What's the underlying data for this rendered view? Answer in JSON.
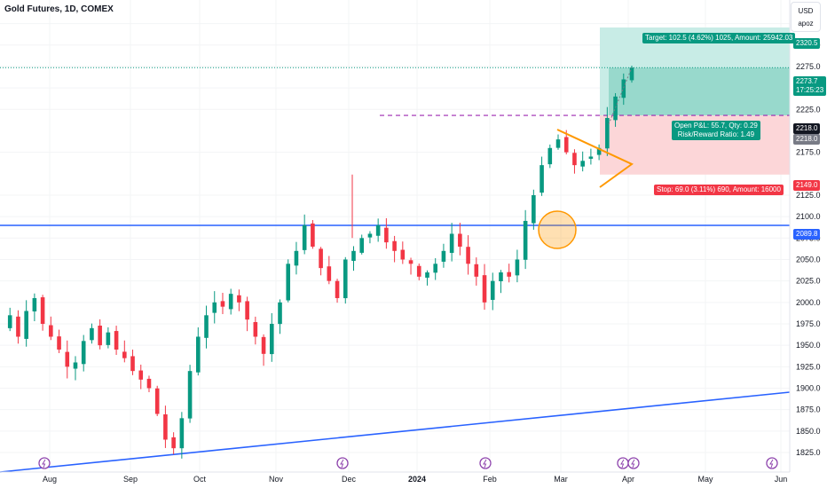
{
  "header": {
    "symbol_title": "Gold Futures, 1D, COMEX"
  },
  "currency_box": {
    "currency": "USD",
    "user": "apoz"
  },
  "y_axis": {
    "ticks": [
      "1825.0",
      "1850.0",
      "1875.0",
      "1900.0",
      "1925.0",
      "1950.0",
      "1975.0",
      "2000.0",
      "2025.0",
      "2050.0",
      "2075.0",
      "2100.0",
      "2125.0",
      "2175.0",
      "2225.0",
      "2250.0",
      "2275.0",
      "2300.0",
      "2325.0"
    ]
  },
  "x_axis": {
    "ticks": [
      "Aug",
      "Sep",
      "Oct",
      "Nov",
      "Dec",
      "2024",
      "Feb",
      "Mar",
      "Apr",
      "May",
      "Jun"
    ]
  },
  "price_labels": {
    "target_price": "2320.5",
    "last_price": "2273.7",
    "countdown": "17:25:23",
    "entry_price": "2218.0",
    "entry_price_2": "2218.0",
    "stop_price": "2149.0",
    "support_price": "2089.8"
  },
  "position_tool": {
    "target_label": "Target: 102.5 (4.62%) 1025, Amount: 25942.03",
    "open_pl_label": "Open P&L: 55.7, Qty: 0.29",
    "risk_reward_label": "Risk/Reward Ratio: 1.49",
    "stop_label": "Stop: 69.0 (3.11%) 690, Amount: 16000"
  },
  "colors": {
    "up": "#089981",
    "down": "#f23645",
    "support_line": "#2962ff",
    "triangle": "#ff9800",
    "dashed_level": "#9c27b0",
    "profit_zone": "#c8ece6",
    "profit_zone_active": "#98d9cc",
    "loss_zone": "#fcd6d8"
  },
  "events": {
    "icon": "lightning-icon"
  },
  "chart_data": {
    "type": "candlestick",
    "title": "Gold Futures, 1D, COMEX",
    "ylim": [
      1815,
      2335
    ],
    "x": [
      "Aug",
      "Sep",
      "Oct",
      "Nov",
      "Dec",
      "2024",
      "Feb",
      "Mar",
      "Apr",
      "May",
      "Jun"
    ],
    "close_path": [
      1970,
      1985,
      1960,
      1990,
      2005,
      1975,
      1960,
      1945,
      1925,
      1930,
      1955,
      1970,
      1950,
      1965,
      1945,
      1935,
      1920,
      1910,
      1900,
      1870,
      1840,
      1830,
      1865,
      1920,
      1960,
      1985,
      2000,
      1995,
      2010,
      2000,
      1980,
      1960,
      1940,
      1975,
      2000,
      2045,
      2060,
      2090,
      2065,
      2040,
      2025,
      2005,
      2050,
      2060,
      2075,
      2080,
      2090,
      2070,
      2060,
      2050,
      2045,
      2030,
      2035,
      2045,
      2060,
      2080,
      2065,
      2045,
      2030,
      2000,
      2025,
      2035,
      2030,
      2050,
      2095,
      2125,
      2160,
      2180,
      2190,
      2175,
      2160,
      2165,
      2170,
      2180,
      2215,
      2240,
      2260,
      2273.7
    ],
    "annotations": {
      "support_level": 2089.8,
      "entry": 2218.0,
      "target": 2320.5,
      "stop": 2149.0,
      "last": 2273.7
    }
  }
}
